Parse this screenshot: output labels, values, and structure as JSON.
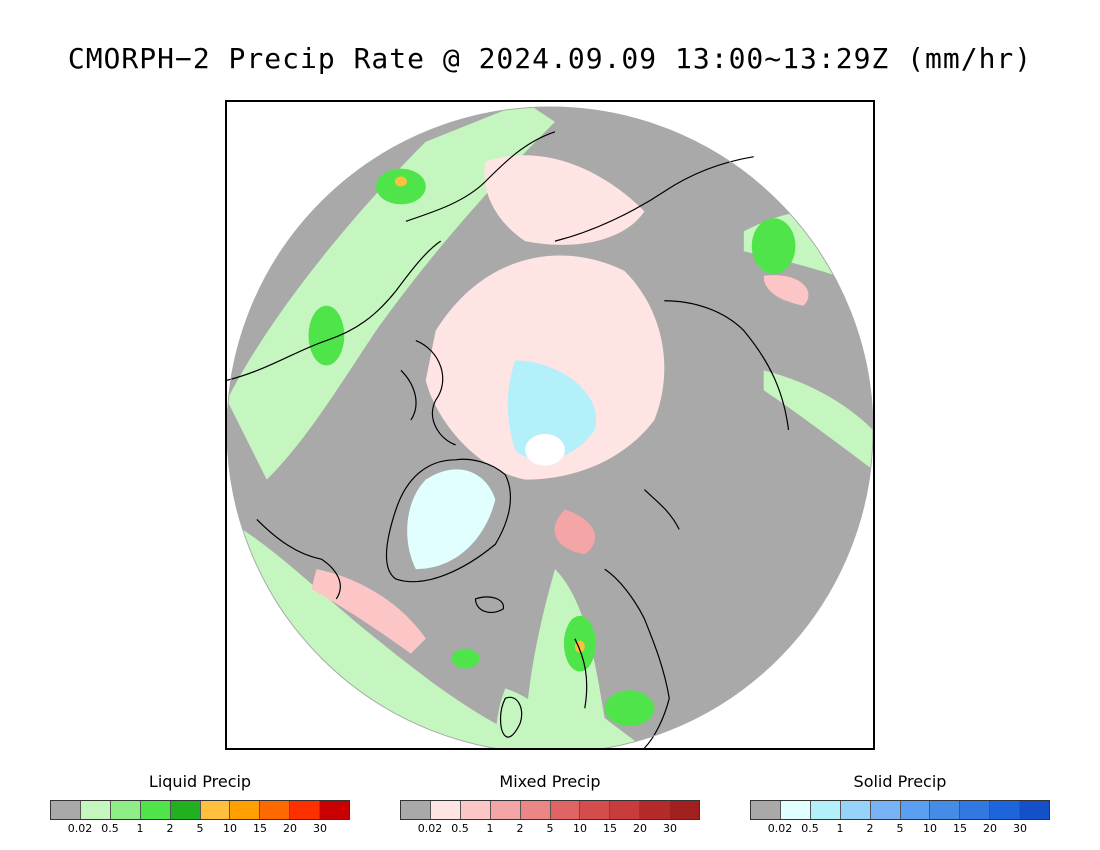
{
  "title": "CMORPH−2 Precip Rate @ 2024.09.09 13:00~13:29Z (mm/hr)",
  "map": {
    "projection": "north-polar-stereographic",
    "colors": {
      "no_precip": "#a9a9a9",
      "ocean_background": "#ffffff",
      "coastline": "#000000"
    }
  },
  "legends": {
    "liquid": {
      "title": "Liquid Precip",
      "ticks": [
        "0.02",
        "0.5",
        "1",
        "2",
        "5",
        "10",
        "15",
        "20",
        "30"
      ],
      "colors": [
        "#a9a9a9",
        "#c6f6c0",
        "#90ee86",
        "#4ee44a",
        "#20b020",
        "#ffc040",
        "#ff9f00",
        "#ff6a00",
        "#ff3000",
        "#c80000"
      ]
    },
    "mixed": {
      "title": "Mixed Precip",
      "ticks": [
        "0.02",
        "0.5",
        "1",
        "2",
        "5",
        "10",
        "15",
        "20",
        "30"
      ],
      "colors": [
        "#a9a9a9",
        "#ffe4e4",
        "#fcc6c6",
        "#f4a6a6",
        "#ec8686",
        "#e06464",
        "#d44c4c",
        "#c83c3c",
        "#b42a2a",
        "#a02020"
      ]
    },
    "solid": {
      "title": "Solid Precip",
      "ticks": [
        "0.02",
        "0.5",
        "1",
        "2",
        "5",
        "10",
        "15",
        "20",
        "30"
      ],
      "colors": [
        "#a9a9a9",
        "#e2ffff",
        "#b4f0fa",
        "#96d2fa",
        "#78b4f5",
        "#5a9ff0",
        "#468ce6",
        "#3278e1",
        "#1e64dc",
        "#1450c8"
      ]
    }
  }
}
